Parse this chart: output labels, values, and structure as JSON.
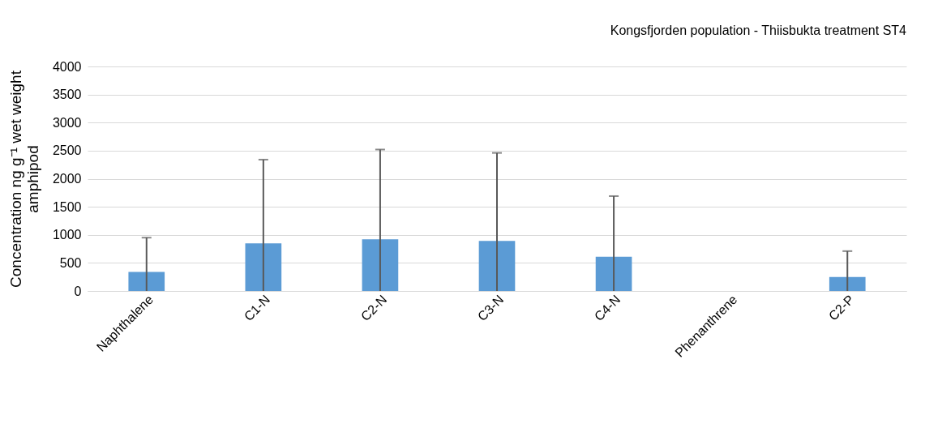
{
  "chart_data": {
    "type": "bar",
    "title": "Kongsfjorden population - Thiisbukta treatment ST4",
    "ylabel": [
      "Concentration ng g⁻¹ wet weight",
      "amphipod"
    ],
    "categories": [
      "Naphthalene",
      "C1-N",
      "C2-N",
      "C3-N",
      "C4-N",
      "Phenanthrene",
      "C2-P"
    ],
    "values": [
      340,
      850,
      920,
      890,
      610,
      0,
      250
    ],
    "errors": [
      610,
      1490,
      1600,
      1570,
      1080,
      null,
      460
    ],
    "color": "#5b9bd5",
    "ylim": [
      0,
      4000
    ],
    "yticks": [
      0,
      500,
      1000,
      1500,
      2000,
      2500,
      3000,
      3500,
      4000
    ],
    "grid": "y"
  }
}
